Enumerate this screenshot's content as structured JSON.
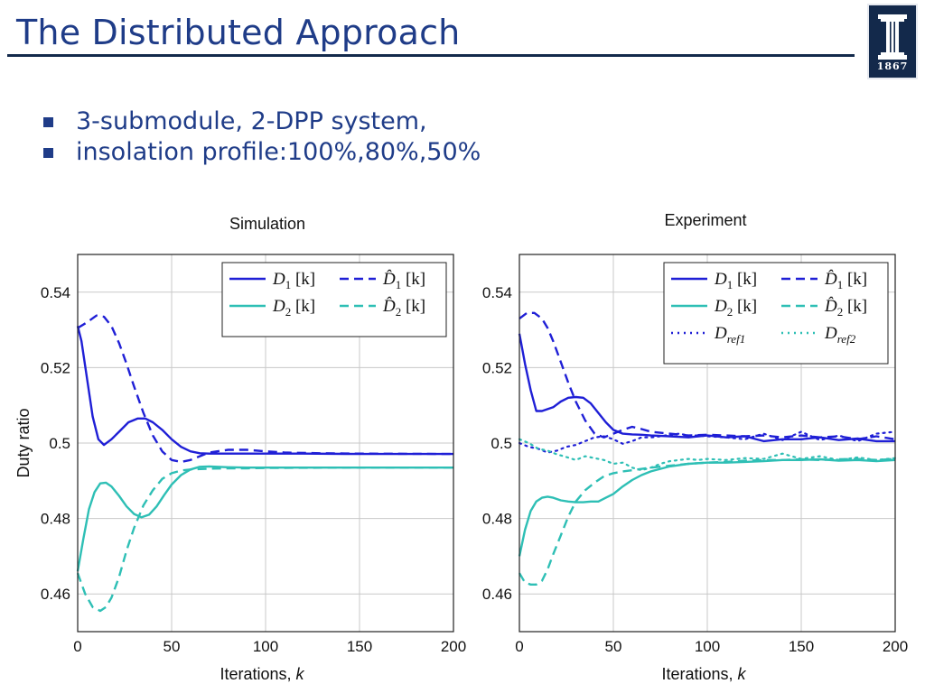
{
  "slide": {
    "title": "The Distributed Approach",
    "logo_year": "1867",
    "bullets": [
      "3-submodule, 2-DPP system,",
      "insolation profile:100%,80%,50%"
    ]
  },
  "colors": {
    "blue": "#1f1fd6",
    "cyan": "#2ebfb5",
    "title": "#1f3c88",
    "rule": "#13294b"
  },
  "chart_data": [
    {
      "type": "line",
      "title": "Simulation",
      "xlabel": "Iterations, k",
      "ylabel": "Duty ratio",
      "xlim": [
        0,
        200
      ],
      "ylim": [
        0.45,
        0.55
      ],
      "xticks": [
        0,
        50,
        100,
        150,
        200
      ],
      "yticks": [
        0.46,
        0.48,
        0.5,
        0.52,
        0.54
      ],
      "xtick_labels": [
        "0",
        "50",
        "100",
        "150",
        "200"
      ],
      "ytick_labels": [
        "0.46",
        "0.48",
        "0.5",
        "0.52",
        "0.54"
      ],
      "grid": true,
      "legend_placement": "top-right",
      "series": [
        {
          "name": "D1[k]",
          "color": "blue",
          "dash": "solid",
          "x": [
            0,
            2,
            5,
            8,
            11,
            14,
            18,
            22,
            27,
            32,
            36,
            40,
            45,
            50,
            55,
            60,
            65,
            70,
            80,
            90,
            100,
            120,
            150,
            200
          ],
          "y": [
            0.531,
            0.527,
            0.517,
            0.507,
            0.501,
            0.4995,
            0.501,
            0.503,
            0.5055,
            0.5065,
            0.5065,
            0.5055,
            0.5035,
            0.501,
            0.499,
            0.4978,
            0.4973,
            0.4972,
            0.4972,
            0.4972,
            0.4972,
            0.4972,
            0.4971,
            0.4971
          ]
        },
        {
          "name": "D̂1[k]",
          "color": "blue",
          "dash": "dashed",
          "x": [
            0,
            5,
            10,
            14,
            18,
            22,
            26,
            30,
            35,
            40,
            45,
            50,
            55,
            60,
            65,
            70,
            80,
            90,
            100,
            110,
            130,
            150,
            200
          ],
          "y": [
            0.5305,
            0.532,
            0.5338,
            0.5335,
            0.531,
            0.5265,
            0.521,
            0.515,
            0.508,
            0.502,
            0.4978,
            0.4955,
            0.495,
            0.4955,
            0.4965,
            0.4975,
            0.4982,
            0.4982,
            0.4978,
            0.4975,
            0.4973,
            0.4972,
            0.4971
          ]
        },
        {
          "name": "D2[k]",
          "color": "cyan",
          "dash": "solid",
          "x": [
            0,
            3,
            6,
            9,
            12,
            15,
            18,
            22,
            26,
            30,
            34,
            38,
            42,
            46,
            50,
            55,
            60,
            65,
            70,
            80,
            90,
            100,
            150,
            200
          ],
          "y": [
            0.466,
            0.4745,
            0.4825,
            0.487,
            0.4893,
            0.4895,
            0.4885,
            0.486,
            0.4832,
            0.4812,
            0.4803,
            0.481,
            0.4832,
            0.4862,
            0.489,
            0.4915,
            0.493,
            0.4937,
            0.4938,
            0.4936,
            0.4935,
            0.4935,
            0.4935,
            0.4935
          ]
        },
        {
          "name": "D̂2[k]",
          "color": "cyan",
          "dash": "dashed",
          "x": [
            0,
            4,
            8,
            12,
            15,
            18,
            22,
            26,
            30,
            35,
            40,
            45,
            50,
            55,
            60,
            70,
            80,
            90,
            100,
            150,
            200
          ],
          "y": [
            0.4655,
            0.46,
            0.4565,
            0.4555,
            0.4565,
            0.459,
            0.4645,
            0.4715,
            0.4775,
            0.4835,
            0.4875,
            0.4905,
            0.492,
            0.4927,
            0.493,
            0.4932,
            0.4933,
            0.4933,
            0.4934,
            0.4935,
            0.4935
          ]
        }
      ]
    },
    {
      "type": "line",
      "title": "Experiment",
      "xlabel": "Iterations, k",
      "ylabel": "",
      "xlim": [
        0,
        200
      ],
      "ylim": [
        0.45,
        0.55
      ],
      "xticks": [
        0,
        50,
        100,
        150,
        200
      ],
      "yticks": [
        0.46,
        0.48,
        0.5,
        0.52,
        0.54
      ],
      "xtick_labels": [
        "0",
        "50",
        "100",
        "150",
        "200"
      ],
      "ytick_labels": [
        "0.46",
        "0.48",
        "0.5",
        "0.52",
        "0.54"
      ],
      "grid": true,
      "legend_placement": "top-right",
      "series": [
        {
          "name": "D1[k]",
          "color": "blue",
          "dash": "solid",
          "x": [
            0,
            3,
            6,
            9,
            12,
            15,
            18,
            22,
            26,
            30,
            34,
            38,
            42,
            46,
            50,
            55,
            60,
            65,
            70,
            80,
            90,
            100,
            110,
            120,
            130,
            140,
            150,
            160,
            170,
            180,
            190,
            200
          ],
          "y": [
            0.529,
            0.521,
            0.514,
            0.5085,
            0.5085,
            0.509,
            0.5095,
            0.511,
            0.512,
            0.5122,
            0.512,
            0.5105,
            0.508,
            0.5055,
            0.5035,
            0.5025,
            0.5023,
            0.5022,
            0.502,
            0.5018,
            0.5015,
            0.502,
            0.5015,
            0.5018,
            0.5005,
            0.501,
            0.501,
            0.5015,
            0.5008,
            0.5012,
            0.5005,
            0.5005
          ]
        },
        {
          "name": "D̂1[k]",
          "color": "blue",
          "dash": "dashed",
          "x": [
            0,
            4,
            8,
            12,
            15,
            18,
            22,
            26,
            30,
            35,
            40,
            45,
            50,
            55,
            60,
            65,
            70,
            80,
            90,
            100,
            110,
            120,
            130,
            140,
            150,
            160,
            170,
            180,
            190,
            200
          ],
          "y": [
            0.533,
            0.5345,
            0.5345,
            0.533,
            0.5305,
            0.527,
            0.5215,
            0.516,
            0.511,
            0.506,
            0.5025,
            0.5015,
            0.5025,
            0.5035,
            0.5043,
            0.5037,
            0.503,
            0.5025,
            0.502,
            0.5022,
            0.502,
            0.5018,
            0.502,
            0.5015,
            0.502,
            0.5015,
            0.5018,
            0.501,
            0.5018,
            0.501
          ]
        },
        {
          "name": "D2[k]",
          "color": "cyan",
          "dash": "solid",
          "x": [
            0,
            3,
            6,
            9,
            12,
            15,
            18,
            22,
            26,
            30,
            34,
            38,
            42,
            46,
            50,
            55,
            60,
            65,
            70,
            80,
            90,
            100,
            110,
            120,
            130,
            140,
            150,
            160,
            170,
            180,
            190,
            200
          ],
          "y": [
            0.47,
            0.477,
            0.482,
            0.4845,
            0.4855,
            0.4858,
            0.4855,
            0.4848,
            0.4845,
            0.4843,
            0.4843,
            0.4845,
            0.4845,
            0.4855,
            0.4865,
            0.4885,
            0.4902,
            0.4915,
            0.4925,
            0.4938,
            0.4945,
            0.4948,
            0.4948,
            0.495,
            0.4952,
            0.4955,
            0.4955,
            0.4957,
            0.4953,
            0.4955,
            0.4952,
            0.4955
          ]
        },
        {
          "name": "D̂2[k]",
          "color": "cyan",
          "dash": "dashed",
          "x": [
            0,
            3,
            6,
            9,
            12,
            15,
            18,
            22,
            26,
            30,
            35,
            40,
            45,
            50,
            55,
            60,
            70,
            80,
            90,
            100,
            110,
            120,
            130,
            140,
            150,
            160,
            170,
            180,
            190,
            200
          ],
          "y": [
            0.4655,
            0.463,
            0.4625,
            0.4625,
            0.4635,
            0.4665,
            0.4705,
            0.4755,
            0.4805,
            0.4845,
            0.4875,
            0.4895,
            0.4912,
            0.492,
            0.4925,
            0.4928,
            0.4935,
            0.494,
            0.4945,
            0.4948,
            0.495,
            0.4953,
            0.4955,
            0.4955,
            0.4957,
            0.4955,
            0.4957,
            0.4958,
            0.4955,
            0.4958
          ]
        },
        {
          "name": "Dref1",
          "color": "blue",
          "dash": "dotted",
          "x": [
            0,
            5,
            10,
            15,
            20,
            25,
            30,
            35,
            40,
            45,
            50,
            55,
            60,
            65,
            70,
            75,
            80,
            85,
            90,
            95,
            100,
            110,
            120,
            130,
            140,
            150,
            160,
            170,
            180,
            190,
            200
          ],
          "y": [
            0.5,
            0.499,
            0.4985,
            0.4975,
            0.498,
            0.499,
            0.4995,
            0.5005,
            0.5015,
            0.5018,
            0.501,
            0.4998,
            0.5005,
            0.5015,
            0.5015,
            0.5018,
            0.5022,
            0.5025,
            0.502,
            0.502,
            0.5018,
            0.5015,
            0.501,
            0.5025,
            0.5008,
            0.503,
            0.5008,
            0.502,
            0.5005,
            0.5025,
            0.503
          ]
        },
        {
          "name": "Dref2",
          "color": "cyan",
          "dash": "dotted",
          "x": [
            0,
            5,
            10,
            15,
            20,
            25,
            30,
            35,
            40,
            45,
            50,
            55,
            60,
            65,
            70,
            75,
            80,
            85,
            90,
            95,
            100,
            110,
            120,
            130,
            140,
            150,
            160,
            170,
            180,
            190,
            200
          ],
          "y": [
            0.501,
            0.5,
            0.4985,
            0.498,
            0.497,
            0.4963,
            0.4955,
            0.4965,
            0.496,
            0.4955,
            0.4945,
            0.4948,
            0.4935,
            0.4928,
            0.4935,
            0.4945,
            0.4952,
            0.4955,
            0.4958,
            0.4955,
            0.4958,
            0.4955,
            0.496,
            0.4958,
            0.4972,
            0.4958,
            0.4965,
            0.4955,
            0.4962,
            0.4955,
            0.496
          ]
        }
      ]
    }
  ]
}
